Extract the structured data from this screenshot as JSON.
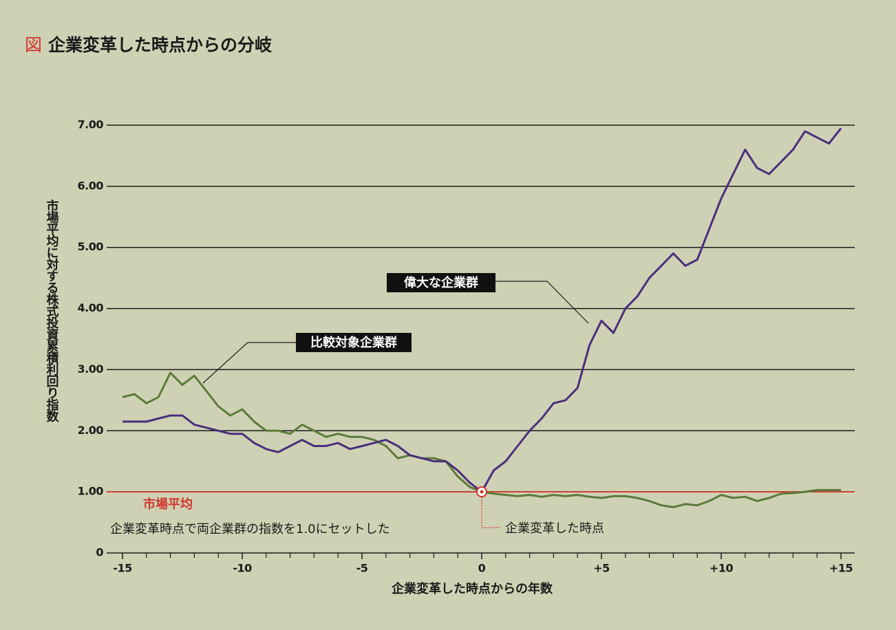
{
  "chart_data": {
    "type": "line",
    "title_prefix": "図",
    "title_prefix_color": "#d0342c",
    "title": "企業変革した時点からの分岐",
    "y_label": "市場平均に対する株式投資累積利回り指数",
    "x_label": "企業変革した時点からの年数",
    "xlim": [
      -15,
      15
    ],
    "xticks": [
      {
        "value": -15,
        "label": "-15"
      },
      {
        "value": -10,
        "label": "-10"
      },
      {
        "value": -5,
        "label": "-5"
      },
      0,
      {
        "value": 5,
        "label": "+5"
      },
      {
        "value": 10,
        "label": "+10"
      },
      {
        "value": 15,
        "label": "+15"
      }
    ],
    "xminor_ticks": [
      -14,
      -13,
      -12,
      -11,
      -9,
      -8,
      -7,
      -6,
      -4,
      -3,
      -2,
      -1,
      1,
      2,
      3,
      4,
      6,
      7,
      8,
      9,
      11,
      12,
      13,
      14
    ],
    "ylim": [
      0,
      7
    ],
    "yticks": [
      0,
      {
        "value": 1,
        "label": "1.00"
      },
      {
        "value": 2,
        "label": "2.00"
      },
      {
        "value": 3,
        "label": "3.00"
      },
      {
        "value": 4,
        "label": "4.00"
      },
      {
        "value": 5,
        "label": "5.00"
      },
      {
        "value": 6,
        "label": "6.00"
      },
      {
        "value": 7,
        "label": "7.00"
      }
    ],
    "grid": true,
    "baseline": {
      "value": 1,
      "label": "市場平均",
      "color": "#d0342c"
    },
    "event": {
      "x": 0,
      "label": "企業変革した時点"
    },
    "note": "企業変革時点で両企業群の指数を1.0にセットした",
    "x": [
      -15,
      -14.5,
      -14,
      -13.5,
      -13,
      -12.5,
      -12,
      -11.5,
      -11,
      -10.5,
      -10,
      -9.5,
      -9,
      -8.5,
      -8,
      -7.5,
      -7,
      -6.5,
      -6,
      -5.5,
      -5,
      -4.5,
      -4,
      -3.5,
      -3,
      -2.5,
      -2,
      -1.5,
      -1,
      -0.5,
      0,
      0.5,
      1,
      1.5,
      2,
      2.5,
      3,
      3.5,
      4,
      4.5,
      5,
      5.5,
      6,
      6.5,
      7,
      7.5,
      8,
      8.5,
      9,
      9.5,
      10,
      10.5,
      11,
      11.5,
      12,
      12.5,
      13,
      13.5,
      14,
      14.5,
      15
    ],
    "series": [
      {
        "name": "偉大な企業群",
        "color": "#4a2e7c",
        "values": [
          2.15,
          2.15,
          2.15,
          2.2,
          2.25,
          2.25,
          2.1,
          2.05,
          2.0,
          1.95,
          1.95,
          1.8,
          1.7,
          1.65,
          1.75,
          1.85,
          1.75,
          1.75,
          1.8,
          1.7,
          1.75,
          1.8,
          1.85,
          1.75,
          1.6,
          1.55,
          1.5,
          1.5,
          1.35,
          1.15,
          1.0,
          1.35,
          1.5,
          1.75,
          2.0,
          2.2,
          2.45,
          2.5,
          2.7,
          3.4,
          3.8,
          3.6,
          4.0,
          4.2,
          4.5,
          4.7,
          4.9,
          4.7,
          4.8,
          5.3,
          5.8,
          6.2,
          6.6,
          6.3,
          6.2,
          6.4,
          6.6,
          6.9,
          6.8,
          6.7,
          6.95
        ]
      },
      {
        "name": "比較対象企業群",
        "color": "#5b7a3a",
        "values": [
          2.55,
          2.6,
          2.45,
          2.55,
          2.95,
          2.75,
          2.9,
          2.65,
          2.4,
          2.25,
          2.35,
          2.15,
          2.0,
          2.0,
          1.95,
          2.1,
          2.0,
          1.9,
          1.95,
          1.9,
          1.9,
          1.85,
          1.75,
          1.55,
          1.6,
          1.55,
          1.55,
          1.5,
          1.25,
          1.08,
          1.0,
          0.97,
          0.95,
          0.93,
          0.95,
          0.92,
          0.95,
          0.93,
          0.95,
          0.92,
          0.9,
          0.93,
          0.93,
          0.9,
          0.85,
          0.78,
          0.75,
          0.8,
          0.78,
          0.85,
          0.95,
          0.9,
          0.92,
          0.85,
          0.9,
          0.97,
          0.98,
          1.0,
          1.03,
          1.03,
          1.03
        ]
      }
    ]
  }
}
